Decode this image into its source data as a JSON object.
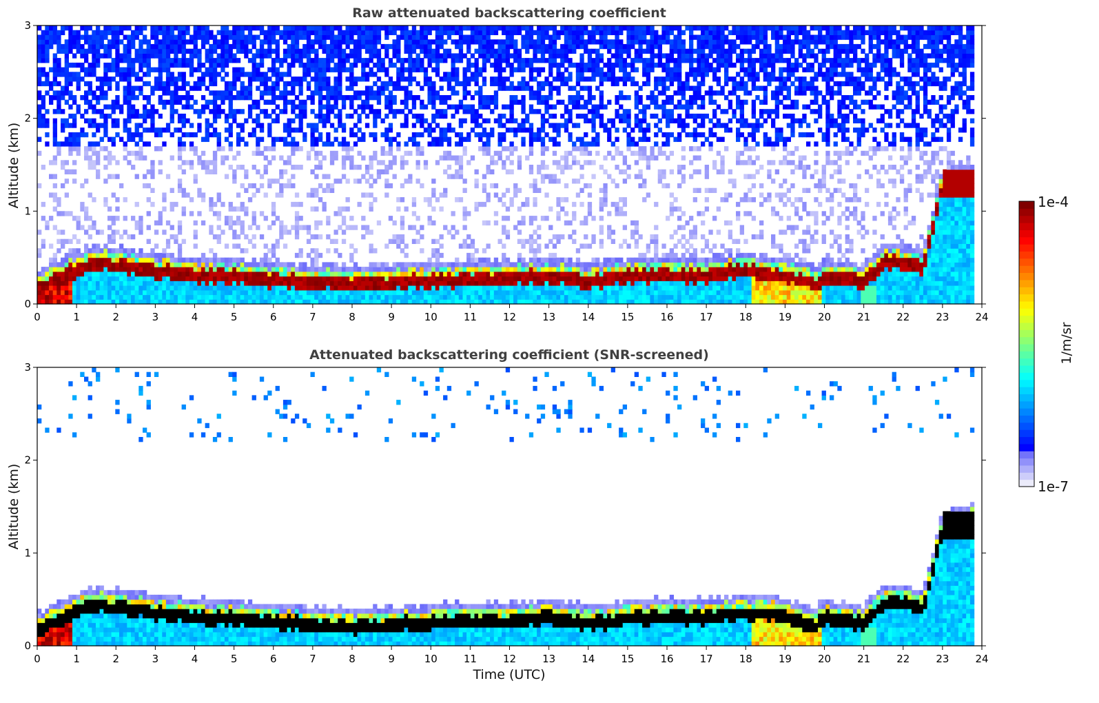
{
  "chart_data": [
    {
      "type": "heatmap",
      "title": "Raw attenuated backscattering coefficient",
      "xlabel": "",
      "ylabel": "Altitude (km)",
      "xlim": [
        0,
        24
      ],
      "ylim": [
        0,
        3
      ],
      "x_ticks": [
        0,
        1,
        2,
        3,
        4,
        5,
        6,
        7,
        8,
        9,
        10,
        11,
        12,
        13,
        14,
        15,
        16,
        17,
        18,
        19,
        20,
        21,
        22,
        23,
        24
      ],
      "y_ticks": [
        0,
        1,
        2,
        3
      ],
      "screened": false,
      "layer_top_km": {
        "x": [
          0,
          0.5,
          1,
          1.5,
          2,
          2.5,
          3,
          4,
          5,
          6,
          7,
          8,
          9,
          10,
          11,
          12,
          13,
          14,
          15,
          16,
          17,
          18,
          19,
          19.8,
          20,
          20.5,
          21,
          21.5,
          22,
          22.5,
          23,
          23.5,
          23.8
        ],
        "y": [
          0.2,
          0.32,
          0.42,
          0.48,
          0.46,
          0.44,
          0.4,
          0.36,
          0.34,
          0.3,
          0.28,
          0.26,
          0.28,
          0.3,
          0.32,
          0.32,
          0.35,
          0.3,
          0.34,
          0.36,
          0.36,
          0.4,
          0.36,
          0.26,
          0.36,
          0.32,
          0.28,
          0.5,
          0.5,
          0.45,
          1.3,
          1.35,
          1.38
        ]
      },
      "low_level_hotspots": [
        {
          "x_start": 0,
          "x_end": 0.9,
          "level": "high"
        },
        {
          "x_start": 18.1,
          "x_end": 19.9,
          "level": "medium"
        }
      ]
    },
    {
      "type": "heatmap",
      "title": "Attenuated backscattering coefficient (SNR-screened)",
      "xlabel": "Time (UTC)",
      "ylabel": "Altitude (km)",
      "xlim": [
        0,
        24
      ],
      "ylim": [
        0,
        3
      ],
      "x_ticks": [
        0,
        1,
        2,
        3,
        4,
        5,
        6,
        7,
        8,
        9,
        10,
        11,
        12,
        13,
        14,
        15,
        16,
        17,
        18,
        19,
        20,
        21,
        22,
        23,
        24
      ],
      "y_ticks": [
        0,
        1,
        2,
        3
      ],
      "screened": true
    }
  ],
  "colorbar": {
    "label": "1/m/sr",
    "tick_max": "1e-4",
    "tick_min": "1e-7",
    "colormap": "jet",
    "saturation_color_screened": "#000000"
  }
}
